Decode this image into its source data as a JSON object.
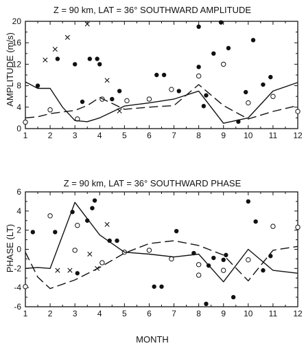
{
  "chart_data": [
    {
      "type": "scatter",
      "title": "Z = 90 km, LAT = 36°  SOUTHWARD AMPLITUDE",
      "ylabel": "AMPLITUDE (m/s)",
      "xlabel": "",
      "xlim": [
        1,
        12
      ],
      "ylim": [
        0,
        20
      ],
      "xticks": [
        "1",
        "2",
        "3",
        "4",
        "5",
        "6",
        "7",
        "8",
        "9",
        "10",
        "11",
        "12"
      ],
      "yticks": [
        "0",
        "4",
        "8",
        "12",
        "16",
        "20"
      ],
      "series": [
        {
          "marker": "filled-circle",
          "points": [
            [
              1.5,
              8.0
            ],
            [
              2.3,
              13.0
            ],
            [
              3.0,
              12.0
            ],
            [
              3.3,
              5.0
            ],
            [
              3.6,
              13.0
            ],
            [
              3.9,
              13.0
            ],
            [
              4.0,
              12.0
            ],
            [
              4.5,
              5.5
            ],
            [
              4.8,
              7.0
            ],
            [
              6.3,
              10.0
            ],
            [
              6.6,
              10.0
            ],
            [
              7.2,
              7.0
            ],
            [
              8.0,
              19.0
            ],
            [
              8.0,
              11.5
            ],
            [
              8.3,
              6.2
            ],
            [
              8.2,
              4.2
            ],
            [
              8.6,
              14.0
            ],
            [
              8.9,
              19.8
            ],
            [
              9.2,
              15.0
            ],
            [
              9.6,
              1.3
            ],
            [
              9.9,
              6.8
            ],
            [
              10.2,
              16.5
            ],
            [
              10.6,
              8.2
            ],
            [
              10.9,
              9.6
            ]
          ]
        },
        {
          "marker": "open-circle",
          "points": [
            [
              1.0,
              1.2
            ],
            [
              2.0,
              3.5
            ],
            [
              3.1,
              1.8
            ],
            [
              4.1,
              5.5
            ],
            [
              5.1,
              5.2
            ],
            [
              6.0,
              5.5
            ],
            [
              6.9,
              7.3
            ],
            [
              8.0,
              9.8
            ],
            [
              9.0,
              12.0
            ],
            [
              10.0,
              4.8
            ],
            [
              11.0,
              6.0
            ],
            [
              12.0,
              3.2
            ]
          ]
        },
        {
          "marker": "cross",
          "points": [
            [
              1.8,
              12.8
            ],
            [
              2.2,
              14.8
            ],
            [
              2.7,
              17.0
            ],
            [
              3.5,
              19.5
            ],
            [
              4.3,
              9.0
            ],
            [
              4.8,
              3.3
            ]
          ]
        },
        {
          "style": "solid",
          "x": [
            1,
            1.5,
            2,
            2.5,
            3,
            3.5,
            4,
            5,
            6,
            7,
            8,
            9,
            10,
            11,
            12
          ],
          "y": [
            8.7,
            7.5,
            7.5,
            4.0,
            1.5,
            1.3,
            2.0,
            4.2,
            4.8,
            5.5,
            7.0,
            1.0,
            2.0,
            7.0,
            8.6
          ]
        },
        {
          "style": "dashed",
          "x": [
            1,
            1.5,
            2,
            3,
            3.5,
            4,
            5,
            6,
            7,
            8,
            9,
            10,
            11,
            12
          ],
          "y": [
            2.0,
            2.2,
            2.8,
            3.4,
            4.3,
            5.8,
            3.6,
            4.0,
            4.3,
            8.2,
            4.3,
            1.8,
            3.2,
            4.3
          ]
        }
      ]
    },
    {
      "type": "scatter",
      "title": "Z = 90 km, LAT = 36°  SOUTHWARD PHASE",
      "ylabel": "PHASE (LT)",
      "xlabel": "MONTH",
      "xlim": [
        1,
        12
      ],
      "ylim": [
        -6,
        6
      ],
      "xticks": [
        "1",
        "2",
        "3",
        "4",
        "5",
        "6",
        "7",
        "8",
        "9",
        "10",
        "11",
        "12"
      ],
      "yticks": [
        "-6",
        "-4",
        "-2",
        "0",
        "2",
        "4",
        "6"
      ],
      "series": [
        {
          "marker": "filled-circle",
          "points": [
            [
              1.3,
              1.8
            ],
            [
              2.2,
              1.8
            ],
            [
              2.9,
              3.9
            ],
            [
              3.1,
              -2.5
            ],
            [
              3.5,
              3.0
            ],
            [
              3.7,
              4.3
            ],
            [
              3.8,
              5.1
            ],
            [
              4.4,
              0.9
            ],
            [
              4.7,
              0.9
            ],
            [
              6.2,
              -3.9
            ],
            [
              6.5,
              -3.9
            ],
            [
              7.1,
              1.9
            ],
            [
              7.8,
              -0.4
            ],
            [
              8.3,
              -5.7
            ],
            [
              8.4,
              -1.7
            ],
            [
              8.6,
              -0.9
            ],
            [
              9.0,
              -1.1
            ],
            [
              9.1,
              -0.6
            ],
            [
              9.4,
              -5.0
            ],
            [
              10.0,
              5.0
            ],
            [
              10.3,
              2.9
            ],
            [
              10.6,
              -2.2
            ],
            [
              10.9,
              -0.7
            ]
          ]
        },
        {
          "marker": "open-circle",
          "points": [
            [
              1.0,
              -3.9
            ],
            [
              2.0,
              3.5
            ],
            [
              3.0,
              -0.1
            ],
            [
              3.1,
              2.5
            ],
            [
              4.1,
              -1.4
            ],
            [
              5.0,
              -0.3
            ],
            [
              6.0,
              -0.1
            ],
            [
              6.9,
              -1.0
            ],
            [
              8.0,
              -1.6
            ],
            [
              8.0,
              -2.7
            ],
            [
              9.0,
              -2.2
            ],
            [
              10.0,
              -1.1
            ],
            [
              11.0,
              2.4
            ],
            [
              12.0,
              2.3
            ]
          ]
        },
        {
          "marker": "cross",
          "points": [
            [
              2.3,
              -2.2
            ],
            [
              2.8,
              -2.2
            ],
            [
              3.6,
              -0.5
            ],
            [
              3.9,
              -2.0
            ],
            [
              4.3,
              2.6
            ]
          ]
        },
        {
          "style": "solid",
          "x": [
            1,
            1.5,
            2,
            3,
            4,
            5,
            6,
            7,
            8,
            9,
            10,
            11,
            12
          ],
          "y": [
            -2.0,
            -1.9,
            -2.0,
            4.9,
            1.5,
            -0.3,
            -0.5,
            -0.8,
            -0.5,
            -3.4,
            -0.0,
            -2.2,
            -2.5
          ]
        },
        {
          "style": "dashed",
          "x": [
            1,
            1.5,
            2,
            3,
            4,
            5,
            6,
            7,
            8,
            9,
            10,
            11,
            12
          ],
          "y": [
            -0.3,
            -2.9,
            -4.1,
            -3.2,
            -1.9,
            -0.4,
            0.6,
            0.9,
            0.4,
            -0.6,
            -3.3,
            -0.1,
            0.3
          ]
        }
      ]
    }
  ]
}
